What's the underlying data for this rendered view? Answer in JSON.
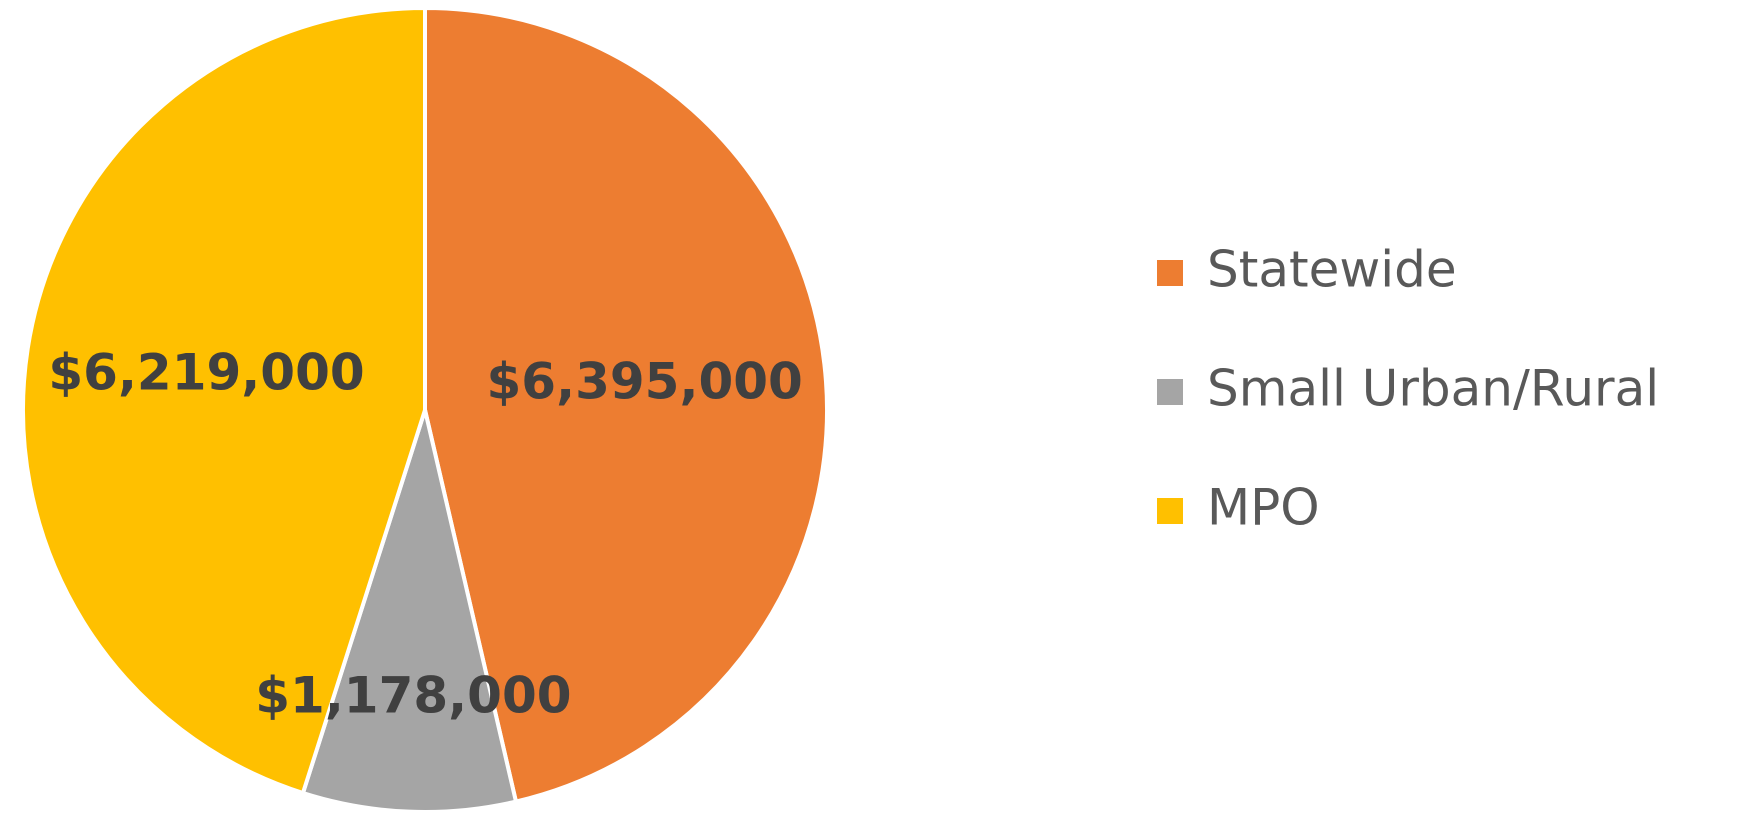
{
  "chart_data": {
    "type": "pie",
    "categories": [
      "Statewide",
      "Small Urban/Rural",
      "MPO"
    ],
    "values": [
      6395000,
      1178000,
      6219000
    ],
    "value_labels": [
      "$6,395,000",
      "$1,178,000",
      "$6,219,000"
    ],
    "colors": [
      "#ed7d31",
      "#a5a5a5",
      "#ffc000"
    ],
    "legend": "right"
  }
}
